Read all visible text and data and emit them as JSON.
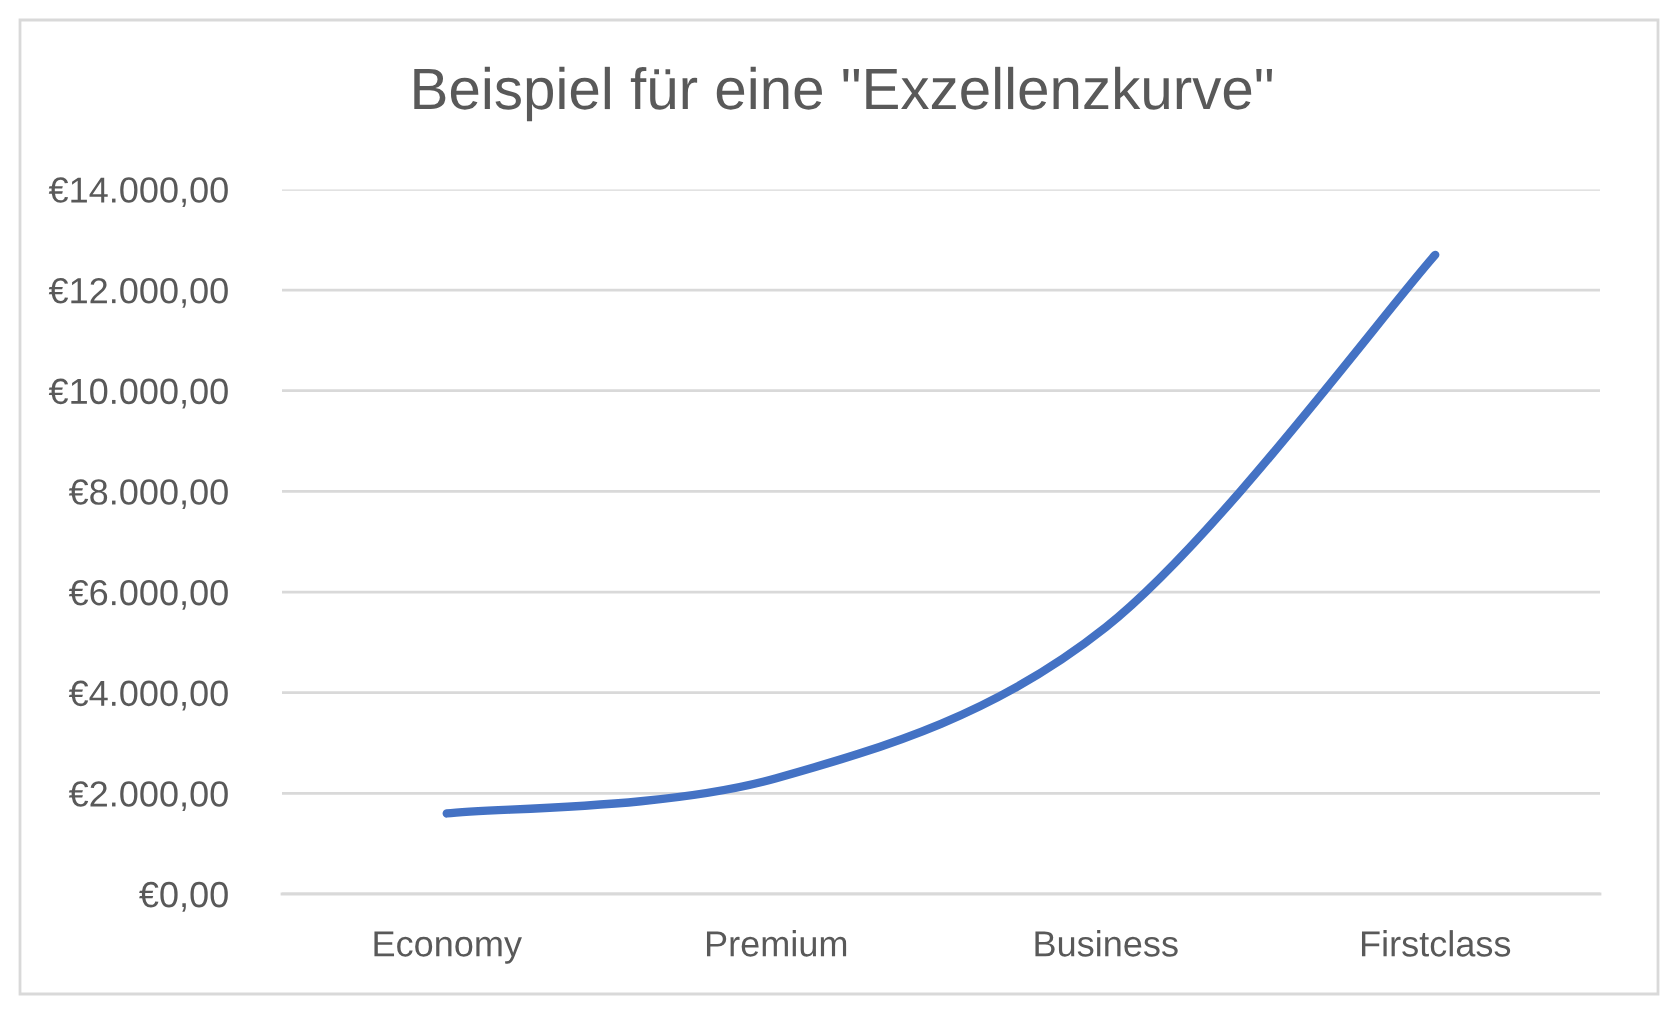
{
  "chart_data": {
    "type": "line",
    "title": "Beispiel für eine \"Exzellenzkurve\"",
    "categories": [
      "Economy",
      "Premium",
      "Business",
      "Firstclass"
    ],
    "series": [
      {
        "color": "#4472c4",
        "values": [
          1600,
          2300,
          5300,
          12700
        ]
      }
    ],
    "ylim": [
      0,
      14000
    ],
    "yticks": [
      {
        "value": 0,
        "label": "€0,00"
      },
      {
        "value": 2000,
        "label": "€2.000,00"
      },
      {
        "value": 4000,
        "label": "€4.000,00"
      },
      {
        "value": 6000,
        "label": "€6.000,00"
      },
      {
        "value": 8000,
        "label": "€8.000,00"
      },
      {
        "value": 10000,
        "label": "€10.000,00"
      },
      {
        "value": 12000,
        "label": "€12.000,00"
      },
      {
        "value": 14000,
        "label": "€14.000,00"
      }
    ],
    "grid": "y",
    "marker": "none",
    "line_style": "solid"
  }
}
